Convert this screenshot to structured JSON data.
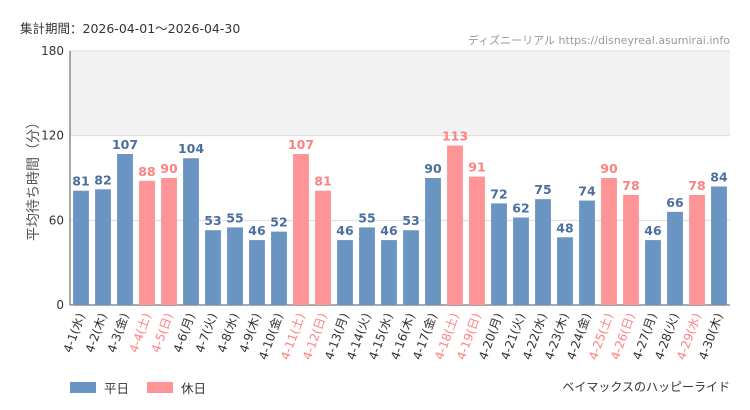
{
  "header": {
    "period_label": "集計期間：2026-04-01～2026-04-30",
    "source": "ディズニーリアル https://disneyreal.asumirai.info"
  },
  "footer": {
    "attraction": "ベイマックスのハッピーライド"
  },
  "legend": [
    {
      "name": "平日",
      "color": "#6a95c3"
    },
    {
      "name": "休日",
      "color": "#ff9496"
    }
  ],
  "colors": {
    "weekday_bar": "#6a95c3",
    "holiday_bar": "#ff9496",
    "holiday_text": "#ff8080",
    "weekday_value": "#4a6f9f"
  },
  "chart_data": {
    "type": "bar",
    "ylabel": "平均待ち時間（分）",
    "ylim": [
      0,
      180
    ],
    "yticks": [
      0,
      60,
      120,
      180
    ],
    "grid": true,
    "highlight_band": [
      120,
      180
    ],
    "legend_position": "bottom-left",
    "categories": [
      "4-1(水)",
      "4-2(木)",
      "4-3(金)",
      "4-4(土)",
      "4-5(日)",
      "4-6(月)",
      "4-7(火)",
      "4-8(水)",
      "4-9(木)",
      "4-10(金)",
      "4-11(土)",
      "4-12(日)",
      "4-13(月)",
      "4-14(火)",
      "4-15(水)",
      "4-16(木)",
      "4-17(金)",
      "4-18(土)",
      "4-19(日)",
      "4-20(月)",
      "4-21(火)",
      "4-22(水)",
      "4-23(木)",
      "4-24(金)",
      "4-25(土)",
      "4-26(日)",
      "4-27(月)",
      "4-28(火)",
      "4-29(水)",
      "4-30(木)"
    ],
    "values": [
      81,
      82,
      107,
      88,
      90,
      104,
      53,
      55,
      46,
      52,
      107,
      81,
      46,
      55,
      46,
      53,
      90,
      113,
      91,
      72,
      62,
      75,
      48,
      74,
      90,
      78,
      46,
      66,
      78,
      84
    ],
    "holiday": [
      false,
      false,
      false,
      true,
      true,
      false,
      false,
      false,
      false,
      false,
      true,
      true,
      false,
      false,
      false,
      false,
      false,
      true,
      true,
      false,
      false,
      false,
      false,
      false,
      true,
      true,
      false,
      false,
      true,
      false
    ]
  }
}
